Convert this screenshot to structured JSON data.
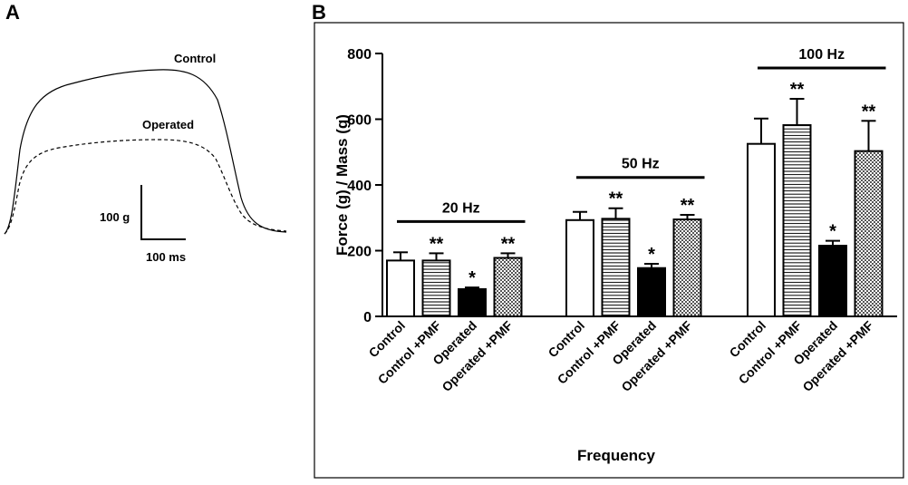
{
  "panel_a": {
    "letter": "A",
    "trace_control_label": "Control",
    "trace_operated_label": "Operated",
    "scale_force_label": "100 g",
    "scale_time_label": "100 ms"
  },
  "panel_b": {
    "letter": "B"
  },
  "colors": {
    "control": "#ffffff",
    "control_pmf": "#ffffff",
    "operated": "#000000",
    "operated_pmf": "#d8d8d8",
    "stroke": "#000000"
  },
  "chart_data": {
    "type": "bar",
    "title": "",
    "xlabel": "Frequency",
    "ylabel": "Force (g) / Mass (g)",
    "ylim": [
      0,
      800
    ],
    "yticks": [
      "0",
      "200",
      "400",
      "600",
      "800"
    ],
    "groups": [
      {
        "name": "20 Hz",
        "bars": [
          {
            "category": "Control",
            "value": 170,
            "error": 25,
            "sig": ""
          },
          {
            "category": "Control +PMF",
            "value": 170,
            "error": 22,
            "sig": "**"
          },
          {
            "category": "Operated",
            "value": 83,
            "error": 5,
            "sig": "*"
          },
          {
            "category": "Operated +PMF",
            "value": 178,
            "error": 14,
            "sig": "**"
          }
        ]
      },
      {
        "name": "50 Hz",
        "bars": [
          {
            "category": "Control",
            "value": 293,
            "error": 25,
            "sig": ""
          },
          {
            "category": "Control +PMF",
            "value": 297,
            "error": 32,
            "sig": "**"
          },
          {
            "category": "Operated",
            "value": 147,
            "error": 13,
            "sig": "*"
          },
          {
            "category": "Operated +PMF",
            "value": 295,
            "error": 14,
            "sig": "**"
          }
        ]
      },
      {
        "name": "100 Hz",
        "bars": [
          {
            "category": "Control",
            "value": 525,
            "error": 77,
            "sig": ""
          },
          {
            "category": "Control +PMF",
            "value": 582,
            "error": 80,
            "sig": "**"
          },
          {
            "category": "Operated",
            "value": 215,
            "error": 15,
            "sig": "*"
          },
          {
            "category": "Operated +PMF",
            "value": 503,
            "error": 92,
            "sig": "**"
          }
        ]
      }
    ]
  }
}
